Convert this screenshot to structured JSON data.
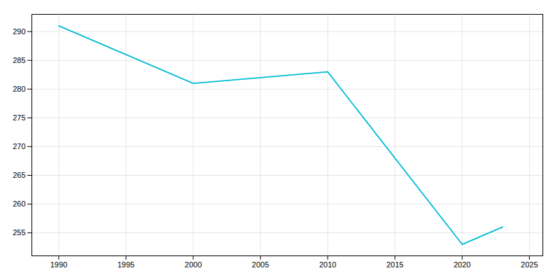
{
  "chart_data": {
    "type": "line",
    "x": [
      1990,
      2000,
      2005,
      2010,
      2020,
      2022,
      2023
    ],
    "values": [
      291,
      281,
      282,
      283,
      253,
      255,
      256
    ],
    "color": "#00BCD4",
    "xlim": [
      1988,
      2026
    ],
    "ylim": [
      251,
      293
    ],
    "xticks": [
      1990,
      1995,
      2000,
      2005,
      2010,
      2015,
      2020,
      2025
    ],
    "yticks": [
      255,
      260,
      265,
      270,
      275,
      280,
      285,
      290
    ],
    "grid": true
  }
}
